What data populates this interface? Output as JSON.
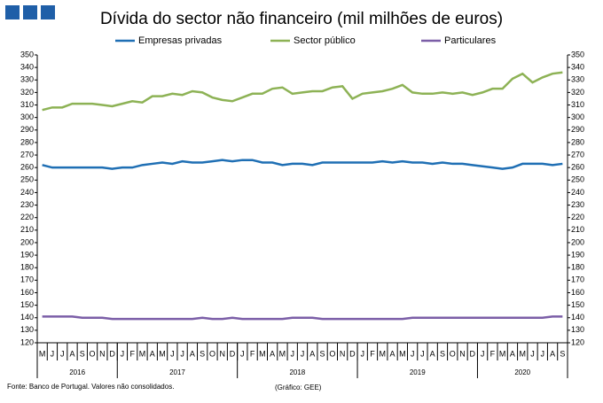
{
  "chart_data": {
    "type": "line",
    "title": "Dívida do sector não financeiro (mil milhões de euros)",
    "categories": [
      "M",
      "J",
      "J",
      "A",
      "S",
      "O",
      "N",
      "D",
      "J",
      "F",
      "M",
      "A",
      "M",
      "J",
      "J",
      "A",
      "S",
      "O",
      "N",
      "D",
      "J",
      "F",
      "M",
      "A",
      "M",
      "J",
      "J",
      "A",
      "S",
      "O",
      "N",
      "D",
      "J",
      "F",
      "M",
      "A",
      "M",
      "J",
      "J",
      "A",
      "S",
      "O",
      "N",
      "D",
      "J",
      "F",
      "M",
      "A",
      "M",
      "J",
      "J",
      "A",
      "S"
    ],
    "years": [
      "2016",
      "2017",
      "2018",
      "2019",
      "2020"
    ],
    "series": [
      {
        "name": "Empresas privadas",
        "color": "#1f6fb4",
        "values": [
          262,
          260,
          260,
          260,
          260,
          260,
          260,
          259,
          260,
          260,
          262,
          263,
          264,
          263,
          265,
          264,
          264,
          265,
          266,
          265,
          266,
          266,
          264,
          264,
          262,
          263,
          263,
          262,
          264,
          264,
          264,
          264,
          264,
          264,
          265,
          264,
          265,
          264,
          264,
          263,
          264,
          263,
          263,
          262,
          261,
          260,
          259,
          260,
          263,
          263,
          263,
          262,
          263
        ]
      },
      {
        "name": "Sector público",
        "color": "#8db255",
        "values": [
          306,
          308,
          308,
          311,
          311,
          311,
          310,
          309,
          311,
          313,
          312,
          317,
          317,
          319,
          318,
          321,
          320,
          316,
          314,
          313,
          316,
          319,
          319,
          323,
          324,
          319,
          320,
          321,
          321,
          324,
          325,
          315,
          319,
          320,
          321,
          323,
          326,
          320,
          319,
          319,
          320,
          319,
          320,
          318,
          320,
          323,
          323,
          331,
          335,
          328,
          332,
          335,
          336
        ]
      },
      {
        "name": "Particulares",
        "color": "#7b5ea7",
        "values": [
          141,
          141,
          141,
          141,
          140,
          140,
          140,
          139,
          139,
          139,
          139,
          139,
          139,
          139,
          139,
          139,
          140,
          139,
          139,
          140,
          139,
          139,
          139,
          139,
          139,
          140,
          140,
          140,
          139,
          139,
          139,
          139,
          139,
          139,
          139,
          139,
          139,
          140,
          140,
          140,
          140,
          140,
          140,
          140,
          140,
          140,
          140,
          140,
          140,
          140,
          140,
          141,
          141
        ]
      }
    ],
    "ylim": [
      120,
      350
    ],
    "yticks": [
      120,
      130,
      140,
      150,
      160,
      170,
      180,
      190,
      200,
      210,
      220,
      230,
      240,
      250,
      260,
      270,
      280,
      290,
      300,
      310,
      320,
      330,
      340,
      350
    ],
    "y2lim": [
      120,
      350
    ],
    "y2ticks": [
      120,
      130,
      140,
      150,
      160,
      170,
      180,
      190,
      200,
      210,
      220,
      230,
      240,
      250,
      260,
      270,
      280,
      290,
      300,
      310,
      320,
      330,
      340,
      350
    ],
    "source": "Fonte: Banco de Portugal. Valores não consolidados.",
    "credit": "(Gráfico: GEE)"
  }
}
